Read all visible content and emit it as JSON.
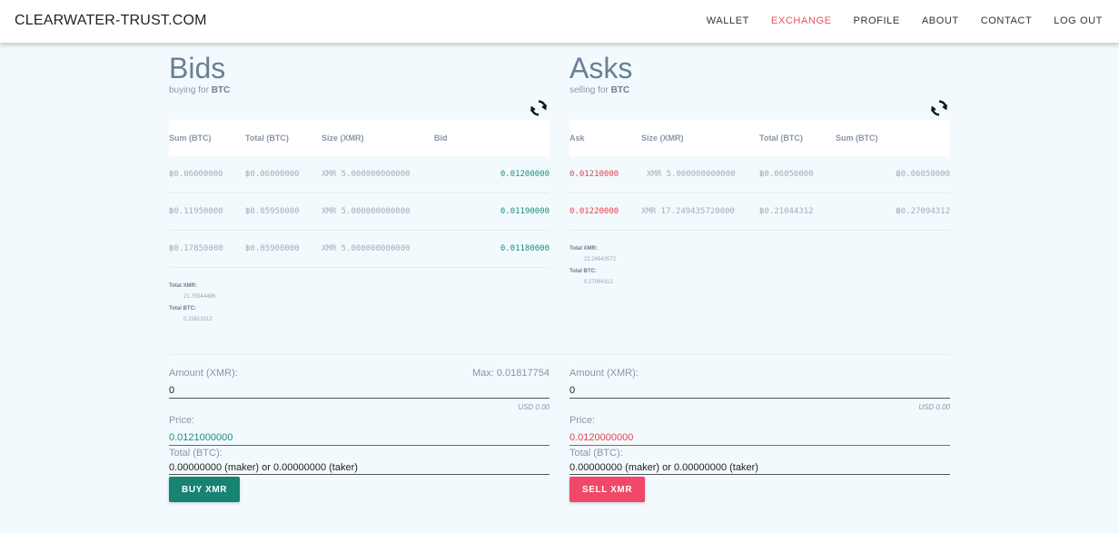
{
  "brand": "CLEARWATER-TRUST.COM",
  "nav": [
    {
      "label": "WALLET",
      "active": false
    },
    {
      "label": "EXCHANGE",
      "active": true
    },
    {
      "label": "PROFILE",
      "active": false
    },
    {
      "label": "ABOUT",
      "active": false
    },
    {
      "label": "CONTACT",
      "active": false
    },
    {
      "label": "LOG OUT",
      "active": false
    }
  ],
  "bids": {
    "title": "Bids",
    "subtitle_prefix": "buying for",
    "subtitle_currency": "BTC",
    "headers": [
      "Sum (BTC)",
      "Total (BTC)",
      "Size (XMR)",
      "Bid"
    ],
    "rows": [
      {
        "sum": "฿0.06000000",
        "total": "฿0.06000000",
        "size": "XMR 5.000000000000",
        "bid": "0.01200000"
      },
      {
        "sum": "฿0.11950000",
        "total": "฿0.05950000",
        "size": "XMR 5.000000000000",
        "bid": "0.01190000"
      },
      {
        "sum": "฿0.17850000",
        "total": "฿0.05900000",
        "size": "XMR 5.000000000000",
        "bid": "0.01180000"
      }
    ],
    "total_xmr_label": "Total XMR:",
    "total_xmr": "21.75044496",
    "total_btc_label": "Total BTC:",
    "total_btc": "0.25613012"
  },
  "asks": {
    "title": "Asks",
    "subtitle_prefix": "selling for",
    "subtitle_currency": "BTC",
    "headers": [
      "Ask",
      "Size (XMR)",
      "Total (BTC)",
      "Sum (BTC)"
    ],
    "rows": [
      {
        "ask": "0.01210000",
        "size": "XMR 5.000000000000",
        "total": "฿0.06050000",
        "sum": "฿0.06050000"
      },
      {
        "ask": "0.01220000",
        "size": "XMR 17.249435720000",
        "total": "฿0.21044312",
        "sum": "฿0.27094312"
      }
    ],
    "total_xmr_label": "Total XMR:",
    "total_xmr": "22.24943572",
    "total_btc_label": "Total BTC:",
    "total_btc": "0.27094312"
  },
  "buy_form": {
    "amount_label": "Amount (XMR):",
    "max_label": "Max: 0.01817754",
    "amount_value": "0",
    "usd": "USD 0.00",
    "price_label": "Price:",
    "price_value": "0.0121000000",
    "total_label": "Total (BTC):",
    "total_value": "0.00000000 (maker) or 0.00000000 (taker)",
    "button": "BUY XMR"
  },
  "sell_form": {
    "amount_label": "Amount (XMR):",
    "amount_value": "0",
    "usd": "USD 0.00",
    "price_label": "Price:",
    "price_value": "0.0120000000",
    "total_label": "Total (BTC):",
    "total_value": "0.00000000 (maker) or 0.00000000 (taker)",
    "button": "SELL XMR"
  },
  "colors": {
    "accent": "#e8545f",
    "buy": "#168373",
    "sell": "#f04868"
  }
}
